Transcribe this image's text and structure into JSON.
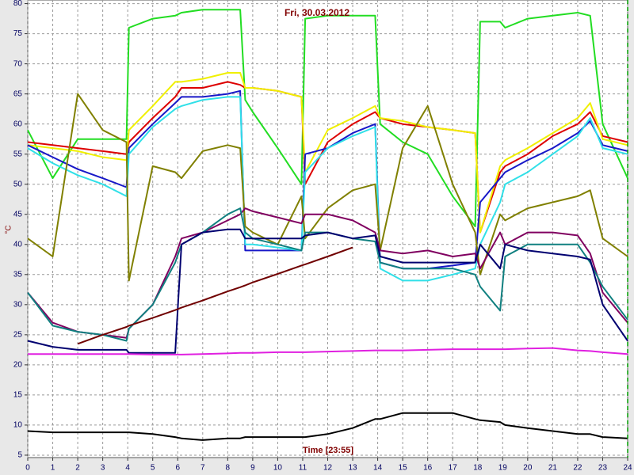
{
  "chart_data": {
    "type": "line",
    "title": "Fri, 30.03.2012",
    "xlabel": "Time [23:55]",
    "ylabel": "°C",
    "x": [
      0,
      1,
      2,
      3,
      3.95,
      4.05,
      5,
      5.9,
      6.15,
      7,
      8,
      8.5,
      8.7,
      9,
      10,
      10.95,
      11.1,
      12,
      13,
      13.9,
      14.1,
      15,
      16,
      17,
      17.9,
      18.1,
      18.9,
      19.1,
      20,
      21,
      22,
      22.5,
      23,
      24
    ],
    "xlim": [
      0,
      24
    ],
    "xticks": [
      0,
      1,
      2,
      3,
      4,
      5,
      6,
      7,
      8,
      9,
      10,
      11,
      12,
      13,
      14,
      15,
      16,
      17,
      18,
      19,
      20,
      21,
      22,
      23,
      24
    ],
    "ylim": [
      4.6,
      80.6
    ],
    "yticks": [
      5,
      10,
      15,
      20,
      25,
      30,
      35,
      40,
      45,
      50,
      55,
      60,
      65,
      70,
      75,
      80
    ],
    "grid": true,
    "series": [
      {
        "color": "#22dd22",
        "values": [
          59,
          51,
          57.5,
          57.5,
          57.5,
          76,
          77.5,
          78,
          78.5,
          79,
          79,
          79,
          64,
          62,
          56,
          50,
          77.5,
          78,
          78,
          78,
          60,
          57,
          55,
          48,
          43,
          77,
          77,
          76,
          77.5,
          78,
          78.5,
          78,
          60,
          51
        ]
      },
      {
        "color": "#dd0000",
        "values": [
          57,
          56.5,
          56,
          55.5,
          55,
          57,
          61,
          64.5,
          66,
          66,
          67,
          66.5,
          66,
          66,
          65.5,
          64.5,
          50,
          57,
          60,
          62,
          61,
          60,
          59.5,
          59,
          58.5,
          42,
          52,
          53,
          55,
          58,
          60,
          62,
          58,
          57
        ]
      },
      {
        "color": "#f0f000",
        "values": [
          56.5,
          56,
          55.5,
          54.5,
          54,
          59,
          63,
          67,
          67,
          67.5,
          68.5,
          68.5,
          66,
          66,
          65.5,
          64.5,
          52,
          59,
          61,
          63,
          61,
          60.5,
          59.5,
          59,
          58.5,
          42,
          53,
          54,
          56,
          58.5,
          61,
          63.5,
          57.5,
          56.5
        ]
      },
      {
        "color": "#1818c8",
        "values": [
          56.5,
          54.5,
          52.5,
          51,
          49.5,
          56,
          60,
          63.5,
          64.5,
          64.5,
          65,
          65.5,
          39,
          39,
          39,
          39,
          55,
          56,
          58.5,
          60,
          37,
          36,
          36,
          36.5,
          37,
          47,
          51,
          52,
          54,
          56,
          58.5,
          60.5,
          56.5,
          55.5
        ]
      },
      {
        "color": "#30e0e8",
        "values": [
          56,
          53.5,
          51.5,
          50,
          48,
          55,
          59.5,
          62.5,
          63,
          64,
          64.5,
          64.5,
          40,
          40,
          39.5,
          39,
          52,
          56,
          58,
          59.5,
          36,
          34,
          34,
          35,
          36,
          40,
          47,
          50,
          52,
          55,
          58,
          61,
          56,
          55
        ]
      },
      {
        "color": "#808000",
        "values": [
          41,
          38,
          65,
          59,
          57,
          34,
          53,
          52,
          51,
          55.5,
          56.5,
          56,
          43,
          42,
          40,
          48,
          41,
          46,
          49,
          50,
          39,
          56,
          63,
          50,
          42,
          35,
          45,
          44,
          46,
          47,
          48,
          49,
          41,
          38
        ]
      },
      {
        "color": "#800060",
        "values": [
          32,
          27,
          25.5,
          25,
          24.5,
          26,
          30,
          38,
          41,
          42,
          44,
          45,
          46,
          45.5,
          44.5,
          43.5,
          45,
          45,
          44,
          42,
          39,
          38.5,
          39,
          38,
          38.5,
          36,
          42,
          40,
          42,
          42,
          41.5,
          38.5,
          32,
          27
        ]
      },
      {
        "color": "#108080",
        "values": [
          32,
          26.5,
          25.5,
          25,
          24,
          26,
          30,
          37,
          40,
          42,
          45,
          46,
          42,
          41,
          40,
          39,
          42,
          42,
          41,
          40.5,
          37,
          36,
          36,
          36,
          35,
          33,
          29,
          38,
          40,
          40,
          40,
          37,
          33,
          27.5
        ]
      },
      {
        "color": "#000070",
        "values": [
          24,
          23,
          22.5,
          22.5,
          22.5,
          22,
          22,
          22,
          40,
          42,
          42.5,
          42.5,
          41,
          41,
          41,
          41,
          41.5,
          42,
          41,
          41.5,
          38,
          37,
          37,
          37,
          37,
          40,
          36,
          40,
          39,
          38.5,
          38,
          37.5,
          30,
          24
        ]
      },
      {
        "color": "#e020e0",
        "values": [
          21.8,
          21.8,
          21.8,
          21.8,
          21.8,
          21.8,
          21.7,
          21.7,
          21.7,
          21.8,
          21.9,
          22,
          22,
          22,
          22.1,
          22.1,
          22.1,
          22.2,
          22.3,
          22.4,
          22.4,
          22.4,
          22.5,
          22.6,
          22.6,
          22.6,
          22.6,
          22.6,
          22.7,
          22.8,
          22.4,
          22.3,
          22.1,
          21.8
        ]
      },
      {
        "color": "#000000",
        "values": [
          9,
          8.8,
          8.8,
          8.8,
          8.8,
          8.8,
          8.5,
          8,
          7.8,
          7.5,
          7.8,
          7.8,
          8,
          8,
          8,
          8,
          8,
          8.5,
          9.5,
          11,
          11,
          12,
          12,
          12,
          11,
          10.8,
          10.5,
          10,
          9.5,
          9,
          8.5,
          8.5,
          8,
          7.8
        ]
      },
      {
        "color": "#700000",
        "values": [
          null,
          null,
          23.5,
          25,
          26.3,
          26.5,
          27.8,
          29.1,
          29.5,
          30.7,
          32.2,
          32.9,
          33.2,
          33.7,
          35.1,
          36.5,
          36.7,
          38,
          39.5,
          null,
          null,
          null,
          null,
          null,
          null,
          null,
          null,
          null,
          null,
          null,
          null,
          null,
          null,
          null
        ]
      }
    ]
  }
}
